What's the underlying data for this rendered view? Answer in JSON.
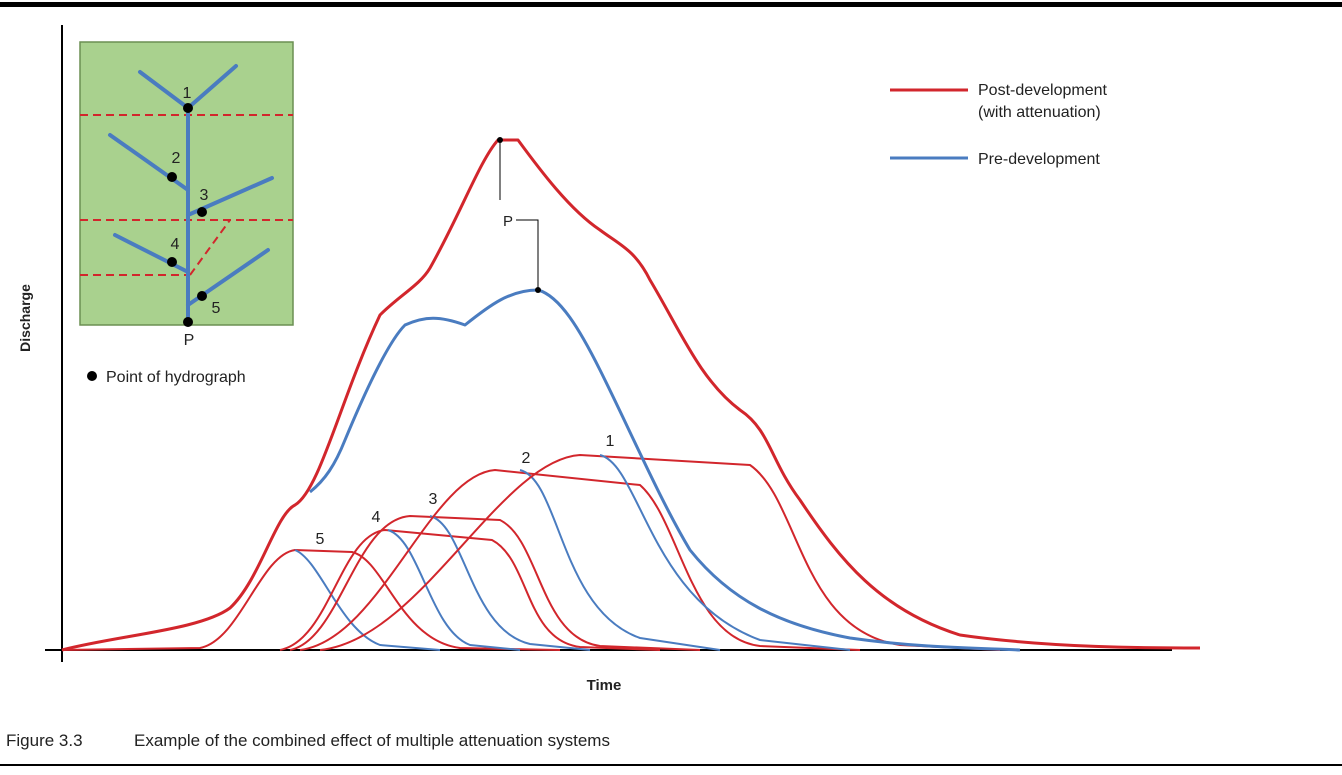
{
  "figure": {
    "axis_labels": {
      "y": "Discharge",
      "x": "Time"
    },
    "legend": [
      {
        "lines": [
          "Post-development",
          "(with attenuation)"
        ]
      },
      {
        "lines": [
          "Pre-development"
        ]
      }
    ],
    "inset": {
      "nodes": [
        "1",
        "2",
        "3",
        "4",
        "5"
      ],
      "outlet": "P",
      "key": "Point of hydrograph"
    },
    "curve_labels": [
      "1",
      "2",
      "3",
      "4",
      "5"
    ],
    "peak_label": "P",
    "caption": {
      "number": "Figure 3.3",
      "text": "Example of the combined effect of multiple attenuation systems"
    }
  }
}
